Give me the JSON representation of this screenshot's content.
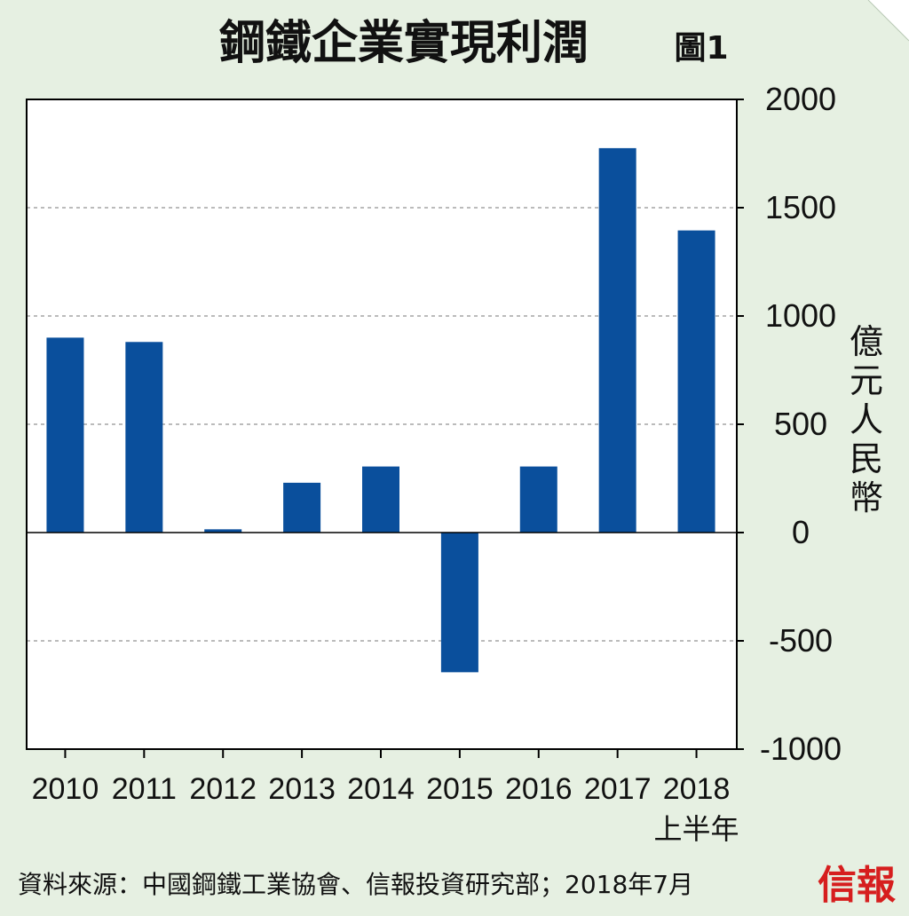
{
  "header": {
    "title": "鋼鐵企業實現利潤",
    "figure_label": "圖1"
  },
  "footer": {
    "source": "資料來源：中國鋼鐵工業協會、信報投資研究部；2018年7月",
    "brand": "信報"
  },
  "colors": {
    "bar": "#0a4f9c",
    "background": "#e6f0e2",
    "plot_background": "#ffffff",
    "brand": "#d61e1e"
  },
  "chart_data": {
    "type": "bar",
    "categories": [
      "2010",
      "2011",
      "2012",
      "2013",
      "2014",
      "2015",
      "2016",
      "2017",
      "2018"
    ],
    "category_sublabels": [
      "",
      "",
      "",
      "",
      "",
      "",
      "",
      "",
      "上半年"
    ],
    "values": [
      900,
      880,
      15,
      230,
      305,
      -645,
      305,
      1775,
      1395
    ],
    "ylabel": "億元人民幣",
    "ylim": [
      -1000,
      2000
    ],
    "yticks": [
      2000,
      1500,
      1000,
      500,
      0,
      -500,
      -1000
    ],
    "ytick_labels": [
      "2000",
      "1500",
      "1000",
      "500",
      "0",
      "-500",
      "-1000"
    ],
    "y_axis_side": "right",
    "grid": "horizontal-dashed"
  }
}
